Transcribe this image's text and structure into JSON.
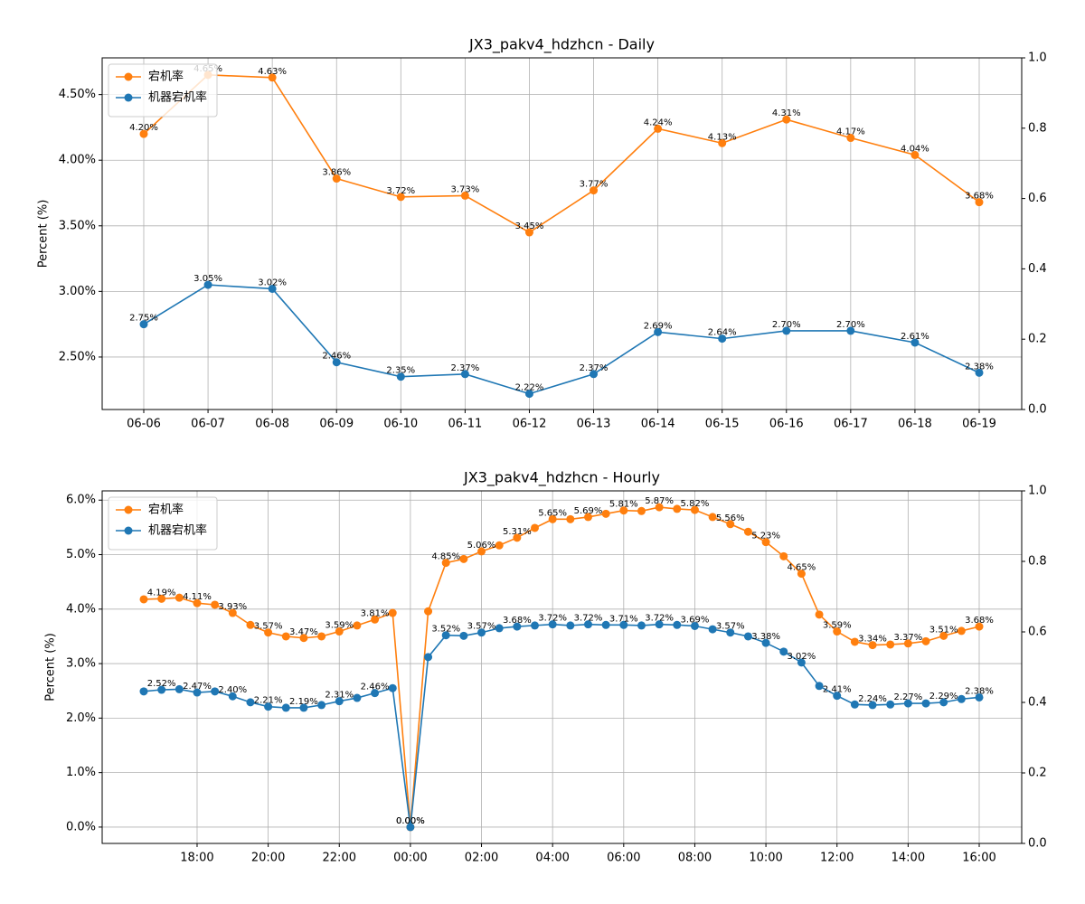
{
  "chart_data": [
    {
      "type": "line",
      "title": "JX3_pakv4_hdzhcn - Daily",
      "ylabel": "Percent (%)",
      "grid": true,
      "legend": "upper left",
      "categories": [
        "06-06",
        "06-07",
        "06-08",
        "06-09",
        "06-10",
        "06-11",
        "06-12",
        "06-13",
        "06-14",
        "06-15",
        "06-16",
        "06-17",
        "06-18",
        "06-19"
      ],
      "series": [
        {
          "name": "宕机率",
          "color": "#ff7f0e",
          "values": [
            4.2,
            4.65,
            4.63,
            3.86,
            3.72,
            3.73,
            3.45,
            3.77,
            4.24,
            4.13,
            4.31,
            4.17,
            4.04,
            3.68
          ],
          "value_labels": [
            "4.20%",
            "4.65%",
            "4.63%",
            "3.86%",
            "3.72%",
            "3.73%",
            "3.45%",
            "3.77%",
            "4.24%",
            "4.13%",
            "4.31%",
            "4.17%",
            "4.04%",
            "3.68%"
          ]
        },
        {
          "name": "机器宕机率",
          "color": "#1f77b4",
          "values": [
            2.75,
            3.05,
            3.02,
            2.46,
            2.35,
            2.37,
            2.22,
            2.37,
            2.69,
            2.64,
            2.7,
            2.7,
            2.61,
            2.38
          ],
          "value_labels": [
            "2.75%",
            "3.05%",
            "3.02%",
            "2.46%",
            "2.35%",
            "2.37%",
            "2.22%",
            "2.37%",
            "2.69%",
            "2.64%",
            "2.70%",
            "2.70%",
            "2.61%",
            "2.38%"
          ]
        }
      ],
      "ylim": [
        2.1,
        4.78
      ],
      "yticks": [
        {
          "value": 2.5,
          "label": "2.50%"
        },
        {
          "value": 3.0,
          "label": "3.00%"
        },
        {
          "value": 3.5,
          "label": "3.50%"
        },
        {
          "value": 4.0,
          "label": "4.00%"
        },
        {
          "value": 4.5,
          "label": "4.50%"
        }
      ],
      "y2lim": [
        0,
        1
      ],
      "y2ticks": [
        {
          "value": 0,
          "label": "0.0"
        },
        {
          "value": 0.2,
          "label": "0.2"
        },
        {
          "value": 0.4,
          "label": "0.4"
        },
        {
          "value": 0.6,
          "label": "0.6"
        },
        {
          "value": 0.8,
          "label": "0.8"
        },
        {
          "value": 1,
          "label": "1.0"
        }
      ]
    },
    {
      "type": "line",
      "title": "JX3_pakv4_hdzhcn - Hourly",
      "ylabel": "Percent (%)",
      "grid": true,
      "legend": "upper left",
      "categories": [
        null,
        null,
        null,
        "18:00",
        null,
        null,
        null,
        "20:00",
        null,
        null,
        null,
        "22:00",
        null,
        null,
        null,
        "00:00",
        null,
        null,
        null,
        "02:00",
        null,
        null,
        null,
        "04:00",
        null,
        null,
        null,
        "06:00",
        null,
        null,
        null,
        "08:00",
        null,
        null,
        null,
        "10:00",
        null,
        null,
        null,
        "12:00",
        null,
        null,
        null,
        "14:00",
        null,
        null,
        null,
        "16:00"
      ],
      "series": [
        {
          "name": "宕机率",
          "color": "#ff7f0e",
          "values": [
            4.18,
            4.19,
            4.21,
            4.11,
            4.08,
            3.93,
            3.71,
            3.57,
            3.5,
            3.47,
            3.5,
            3.59,
            3.7,
            3.81,
            3.93,
            0.0,
            3.96,
            4.85,
            4.92,
            5.06,
            5.17,
            5.31,
            5.49,
            5.65,
            5.65,
            5.69,
            5.75,
            5.81,
            5.8,
            5.87,
            5.84,
            5.82,
            5.69,
            5.56,
            5.42,
            5.23,
            4.97,
            4.65,
            3.9,
            3.59,
            3.4,
            3.34,
            3.35,
            3.37,
            3.41,
            3.51,
            3.6,
            3.68
          ],
          "value_labels": [
            null,
            "4.19%",
            null,
            "4.11%",
            null,
            "3.93%",
            null,
            "3.57%",
            null,
            "3.47%",
            null,
            "3.59%",
            null,
            "3.81%",
            null,
            "0.00%",
            null,
            "4.85%",
            null,
            "5.06%",
            null,
            "5.31%",
            null,
            "5.65%",
            null,
            "5.69%",
            null,
            "5.81%",
            null,
            "5.87%",
            null,
            "5.82%",
            null,
            "5.56%",
            null,
            "5.23%",
            null,
            "4.65%",
            null,
            "3.59%",
            null,
            "3.34%",
            null,
            "3.37%",
            null,
            "3.51%",
            null,
            "3.68%"
          ]
        },
        {
          "name": "机器宕机率",
          "color": "#1f77b4",
          "values": [
            2.49,
            2.52,
            2.53,
            2.47,
            2.49,
            2.4,
            2.29,
            2.21,
            2.19,
            2.19,
            2.24,
            2.31,
            2.37,
            2.46,
            2.55,
            0.0,
            3.12,
            3.52,
            3.51,
            3.57,
            3.65,
            3.68,
            3.7,
            3.72,
            3.7,
            3.72,
            3.71,
            3.71,
            3.7,
            3.72,
            3.71,
            3.69,
            3.63,
            3.57,
            3.5,
            3.38,
            3.22,
            3.02,
            2.59,
            2.41,
            2.25,
            2.24,
            2.25,
            2.27,
            2.27,
            2.29,
            2.35,
            2.38
          ],
          "value_labels": [
            null,
            "2.52%",
            null,
            "2.47%",
            null,
            "2.40%",
            null,
            "2.21%",
            null,
            "2.19%",
            null,
            "2.31%",
            null,
            "2.46%",
            null,
            "0.00%",
            null,
            "3.52%",
            null,
            "3.57%",
            null,
            "3.68%",
            null,
            "3.72%",
            null,
            "3.72%",
            null,
            "3.71%",
            null,
            "3.72%",
            null,
            "3.69%",
            null,
            "3.57%",
            null,
            "3.38%",
            null,
            "3.02%",
            null,
            "2.41%",
            null,
            "2.24%",
            null,
            "2.27%",
            null,
            "2.29%",
            null,
            "2.38%"
          ]
        }
      ],
      "ylim": [
        -0.3,
        6.17
      ],
      "yticks": [
        {
          "value": 0,
          "label": "0.0%"
        },
        {
          "value": 1,
          "label": "1.0%"
        },
        {
          "value": 2,
          "label": "2.0%"
        },
        {
          "value": 3,
          "label": "3.0%"
        },
        {
          "value": 4,
          "label": "4.0%"
        },
        {
          "value": 5,
          "label": "5.0%"
        },
        {
          "value": 6,
          "label": "6.0%"
        }
      ],
      "y2lim": [
        0,
        1
      ],
      "y2ticks": [
        {
          "value": 0,
          "label": "0.0"
        },
        {
          "value": 0.2,
          "label": "0.2"
        },
        {
          "value": 0.4,
          "label": "0.4"
        },
        {
          "value": 0.6,
          "label": "0.6"
        },
        {
          "value": 0.8,
          "label": "0.8"
        },
        {
          "value": 1,
          "label": "1.0"
        }
      ]
    }
  ]
}
